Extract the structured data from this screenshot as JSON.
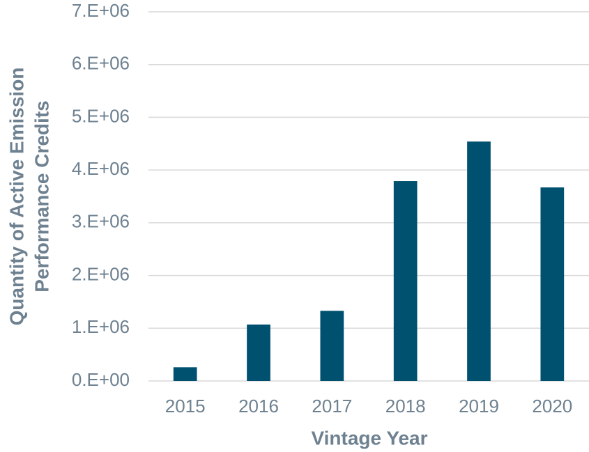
{
  "chart_data": {
    "type": "bar",
    "xlabel": "Vintage Year",
    "ylabel": [
      "Quantity of Active Emission",
      "Performance Credits"
    ],
    "categories": [
      "2015",
      "2016",
      "2017",
      "2018",
      "2019",
      "2020"
    ],
    "values": [
      260000,
      1070000,
      1330000,
      3790000,
      4540000,
      3670000
    ],
    "color": "#00506f",
    "ylim": [
      0,
      7000000
    ],
    "yticks": [
      {
        "value": 0,
        "label": "0.E+00"
      },
      {
        "value": 1000000,
        "label": "1.E+06"
      },
      {
        "value": 2000000,
        "label": "2.E+06"
      },
      {
        "value": 3000000,
        "label": "3.E+06"
      },
      {
        "value": 4000000,
        "label": "4.E+06"
      },
      {
        "value": 5000000,
        "label": "5.E+06"
      },
      {
        "value": 6000000,
        "label": "6.E+06"
      },
      {
        "value": 7000000,
        "label": "7.E+06"
      }
    ],
    "grid": true
  }
}
